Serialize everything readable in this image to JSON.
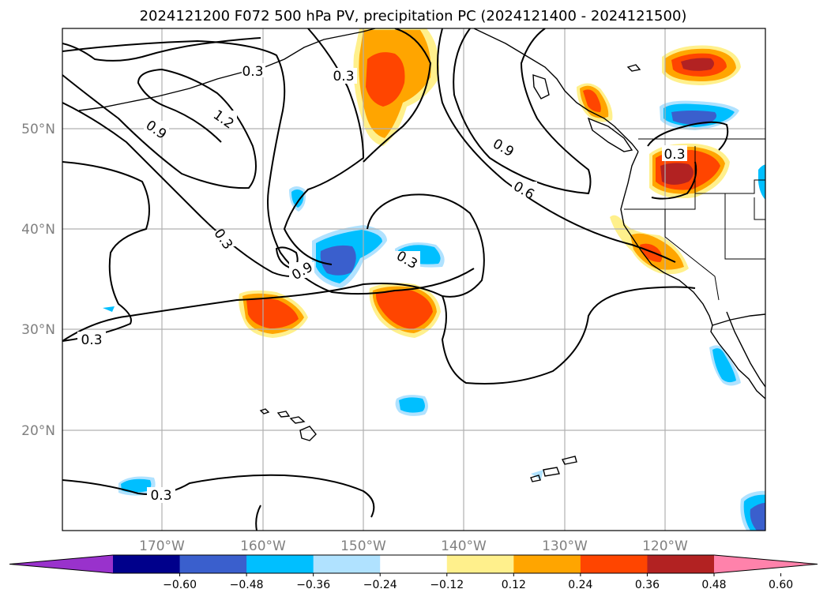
{
  "title": "2024121200 F072 500 hPa PV, precipitation PC (2024121400 - 2024121500)",
  "lon_labels": [
    "170°W",
    "160°W",
    "150°W",
    "140°W",
    "130°W",
    "120°W"
  ],
  "lat_labels": [
    "50°N",
    "40°N",
    "30°N",
    "20°N"
  ],
  "contour_labels": [
    "0.3",
    "0.9",
    "1.2",
    "0.9",
    "0.6",
    "0.3",
    "0.3",
    "0.9",
    "0.3",
    "0.3",
    "0.3"
  ],
  "colorbar": {
    "ticks": [
      "−0.60",
      "−0.48",
      "−0.36",
      "−0.24",
      "−0.12",
      "0.12",
      "0.24",
      "0.36",
      "0.48",
      "0.60"
    ],
    "colors": [
      "#9932cc",
      "#00008b",
      "#3a5fcd",
      "#00bfff",
      "#b0e2ff",
      "#ffffff",
      "#fff08c",
      "#ffa500",
      "#ff4500",
      "#b22222",
      "#ff82ab"
    ]
  },
  "colors": {
    "neg_outer": "#b0e2ff",
    "neg_mid": "#00bfff",
    "neg_core": "#3a5fcd",
    "pos_outer": "#fff08c",
    "pos_mid": "#ffa500",
    "pos_core": "#ff4500",
    "pos_max": "#b22222"
  }
}
